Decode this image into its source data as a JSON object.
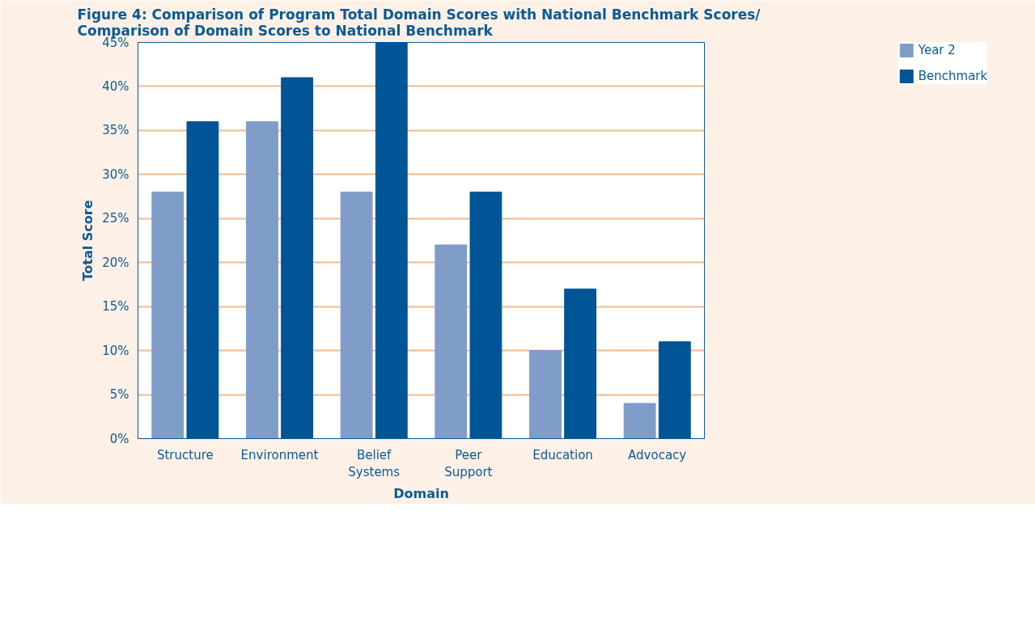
{
  "chart_data": {
    "type": "bar",
    "title": "Figure 4:  Comparison of Program Total Domain Scores with National Benchmark Scores/\nComparison of Domain Scores to National Benchmark",
    "xlabel": "Domain",
    "ylabel": "Total Score",
    "categories": [
      "Structure",
      "Environment",
      "Belief\nSystems",
      "Peer\nSupport",
      "Education",
      "Advocacy"
    ],
    "series": [
      {
        "name": "Year 2",
        "color": "#809cc8",
        "values": [
          28,
          36,
          28,
          22,
          10,
          4
        ]
      },
      {
        "name": "Benchmark",
        "color": "#005596",
        "values": [
          36,
          41,
          45,
          28,
          17,
          11
        ]
      }
    ],
    "ylim": [
      0,
      45
    ],
    "yticks": [
      {
        "value": 0,
        "label": "0%"
      },
      {
        "value": 5,
        "label": "5%"
      },
      {
        "value": 10,
        "label": "10%"
      },
      {
        "value": 15,
        "label": "15%"
      },
      {
        "value": 20,
        "label": "20%"
      },
      {
        "value": 25,
        "label": "25%"
      },
      {
        "value": 30,
        "label": "30%"
      },
      {
        "value": 35,
        "label": "35%"
      },
      {
        "value": 40,
        "label": "40%"
      },
      {
        "value": 45,
        "label": "45%"
      }
    ],
    "grid": "y",
    "legend": "top right"
  }
}
